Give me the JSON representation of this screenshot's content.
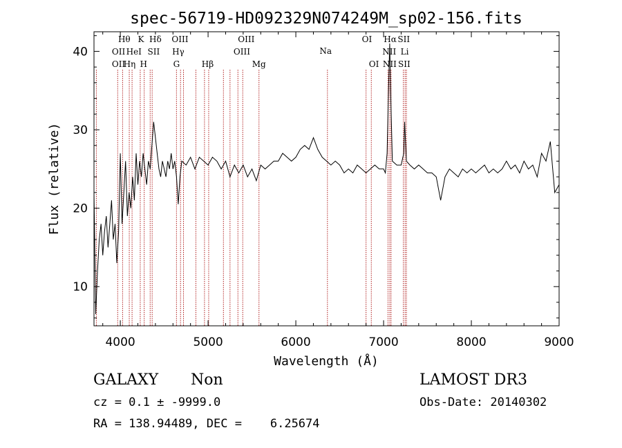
{
  "chart_data": {
    "type": "line",
    "title": "spec-56719-HD092329N074249M_sp02-156.fits",
    "xlabel": "Wavelength (Å)",
    "ylabel": "Flux (relative)",
    "xlim": [
      3700,
      9000
    ],
    "ylim": [
      5,
      42.5
    ],
    "xticks": [
      4000,
      5000,
      6000,
      7000,
      8000,
      9000
    ],
    "yticks": [
      10,
      20,
      30,
      40
    ],
    "grid": false,
    "line_color": "#000000",
    "marker_color": "#b22222",
    "series": [
      {
        "x": [
          3700,
          3720,
          3740,
          3760,
          3780,
          3800,
          3820,
          3840,
          3860,
          3880,
          3900,
          3920,
          3940,
          3960,
          3980,
          4000,
          4020,
          4040,
          4060,
          4080,
          4100,
          4120,
          4140,
          4160,
          4180,
          4200,
          4220,
          4240,
          4260,
          4280,
          4300,
          4320,
          4340,
          4360,
          4380,
          4400,
          4420,
          4440,
          4460,
          4480,
          4500,
          4520,
          4540,
          4560,
          4580,
          4600,
          4620,
          4640,
          4660,
          4680,
          4700,
          4750,
          4800,
          4850,
          4900,
          4950,
          5000,
          5050,
          5100,
          5150,
          5200,
          5250,
          5300,
          5350,
          5400,
          5450,
          5500,
          5550,
          5600,
          5650,
          5700,
          5750,
          5800,
          5850,
          5900,
          5950,
          6000,
          6050,
          6100,
          6150,
          6200,
          6250,
          6300,
          6350,
          6400,
          6450,
          6500,
          6550,
          6600,
          6650,
          6700,
          6750,
          6800,
          6850,
          6900,
          6950,
          7000,
          7020,
          7040,
          7060,
          7070,
          7080,
          7100,
          7150,
          7200,
          7230,
          7240,
          7260,
          7300,
          7350,
          7400,
          7450,
          7500,
          7550,
          7600,
          7650,
          7700,
          7750,
          7800,
          7850,
          7900,
          7950,
          8000,
          8050,
          8100,
          8150,
          8200,
          8250,
          8300,
          8350,
          8400,
          8450,
          8500,
          8550,
          8600,
          8650,
          8700,
          8750,
          8800,
          8850,
          8900,
          8950,
          9000
        ],
        "y": [
          22,
          6.5,
          12,
          16,
          18,
          14,
          17,
          19,
          15,
          18,
          21,
          16,
          18,
          13,
          17,
          27,
          18,
          22,
          26,
          19,
          22,
          20,
          24,
          21,
          27,
          23,
          26,
          24,
          27,
          25,
          23,
          26,
          25,
          28,
          31,
          29,
          27,
          25,
          24,
          26,
          25,
          24,
          26,
          25,
          27,
          25,
          26,
          24,
          20.5,
          24,
          26,
          25.5,
          26.5,
          25,
          26.5,
          26,
          25.5,
          26.5,
          26,
          25,
          26,
          24,
          25.5,
          24.5,
          25.5,
          24,
          25,
          23.5,
          25.5,
          25,
          25.5,
          26,
          26,
          27,
          26.5,
          26,
          26.5,
          27.5,
          28,
          27.5,
          29,
          27.5,
          26.5,
          26,
          25.5,
          26,
          25.5,
          24.5,
          25,
          24.5,
          25.5,
          25,
          24.5,
          25,
          25.5,
          25,
          25,
          24.5,
          27,
          37,
          41,
          35,
          26,
          25.5,
          25.5,
          27,
          31,
          26,
          25.5,
          25,
          25.5,
          25,
          24.5,
          24.5,
          24,
          21,
          24,
          25,
          24.5,
          24,
          25,
          24.5,
          25,
          24.5,
          25,
          25.5,
          24.5,
          25,
          24.5,
          25,
          26,
          25,
          25.5,
          24.5,
          26,
          25,
          25.5,
          24,
          27,
          26,
          28.5,
          22,
          23
        ]
      }
    ],
    "lines": [
      {
        "wl": 3727,
        "labels": []
      },
      {
        "wl": 3970,
        "labels": []
      },
      {
        "wl": 4026,
        "labels": []
      },
      {
        "wl": 4102,
        "labels": []
      },
      {
        "wl": 4134,
        "labels": []
      },
      {
        "wl": 4227,
        "labels": []
      },
      {
        "wl": 4272,
        "labels": []
      },
      {
        "wl": 4340,
        "labels": []
      },
      {
        "wl": 4363,
        "labels": []
      },
      {
        "wl": 4640,
        "labels": []
      },
      {
        "wl": 4686,
        "labels": []
      },
      {
        "wl": 4720,
        "labels": []
      },
      {
        "wl": 4861,
        "labels": []
      },
      {
        "wl": 4959,
        "labels": []
      },
      {
        "wl": 5007,
        "labels": []
      },
      {
        "wl": 5175,
        "labels": []
      },
      {
        "wl": 5250,
        "labels": []
      },
      {
        "wl": 5340,
        "labels": []
      },
      {
        "wl": 5395,
        "labels": []
      },
      {
        "wl": 5580,
        "labels": []
      },
      {
        "wl": 6360,
        "labels": []
      },
      {
        "wl": 6800,
        "labels": []
      },
      {
        "wl": 6860,
        "labels": []
      },
      {
        "wl": 7050,
        "labels": []
      },
      {
        "wl": 7070,
        "labels": []
      },
      {
        "wl": 7085,
        "labels": []
      },
      {
        "wl": 7225,
        "labels": []
      },
      {
        "wl": 7245,
        "labels": []
      },
      {
        "wl": 7260,
        "labels": []
      }
    ],
    "line_labels": [
      {
        "text": "Hθ",
        "wl": 4045,
        "row": 0
      },
      {
        "text": "K",
        "wl": 4235,
        "row": 0
      },
      {
        "text": "Hδ",
        "wl": 4400,
        "row": 0
      },
      {
        "text": "OIII",
        "wl": 4680,
        "row": 0
      },
      {
        "text": "OIII",
        "wl": 5435,
        "row": 0
      },
      {
        "text": "OI",
        "wl": 6810,
        "row": 0
      },
      {
        "text": "Hα",
        "wl": 7075,
        "row": 0
      },
      {
        "text": "SII",
        "wl": 7230,
        "row": 0
      },
      {
        "text": "OII",
        "wl": 3980,
        "row": 1
      },
      {
        "text": "HeI",
        "wl": 4155,
        "row": 1
      },
      {
        "text": "SII",
        "wl": 4380,
        "row": 1
      },
      {
        "text": "Hγ",
        "wl": 4660,
        "row": 1
      },
      {
        "text": "OIII",
        "wl": 5385,
        "row": 1
      },
      {
        "text": "Na",
        "wl": 6340,
        "row": 1.5
      },
      {
        "text": "NII",
        "wl": 7065,
        "row": 1
      },
      {
        "text": "Li",
        "wl": 7240,
        "row": 1
      },
      {
        "text": "OII",
        "wl": 3980,
        "row": 2
      },
      {
        "text": "Hη",
        "wl": 4105,
        "row": 2
      },
      {
        "text": "H",
        "wl": 4265,
        "row": 2
      },
      {
        "text": "G",
        "wl": 4640,
        "row": 2
      },
      {
        "text": "Hβ",
        "wl": 4995,
        "row": 2
      },
      {
        "text": "Mg",
        "wl": 5580,
        "row": 2
      },
      {
        "text": "OI",
        "wl": 6890,
        "row": 2
      },
      {
        "text": "NII",
        "wl": 7070,
        "row": 2
      },
      {
        "text": "SII",
        "wl": 7235,
        "row": 2
      }
    ]
  },
  "info": {
    "class_left": "GALAXY",
    "class_right": "Non",
    "survey": "LAMOST DR3",
    "cz": "cz = 0.1 ± -9999.0",
    "obs_date": "Obs-Date: 20140302",
    "radec": "RA = 138.94489, DEC =    6.25674"
  }
}
